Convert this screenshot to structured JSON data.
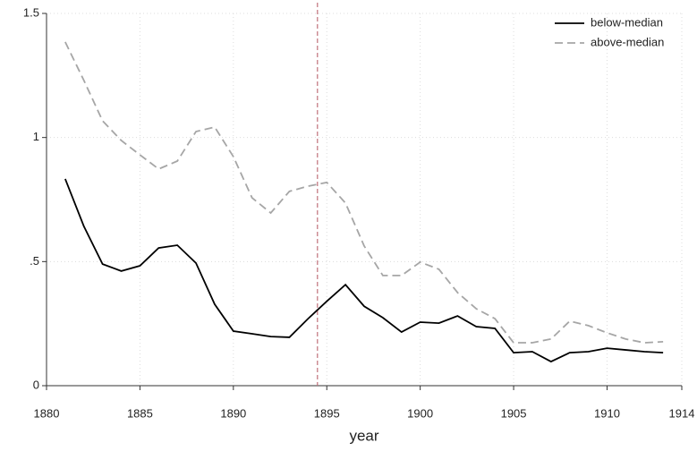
{
  "chart_data": {
    "type": "line",
    "xlabel": "year",
    "x": [
      1881,
      1882,
      1883,
      1884,
      1885,
      1886,
      1887,
      1888,
      1889,
      1890,
      1891,
      1892,
      1893,
      1894,
      1895,
      1896,
      1897,
      1898,
      1899,
      1900,
      1901,
      1902,
      1903,
      1904,
      1905,
      1906,
      1907,
      1908,
      1909,
      1910,
      1911,
      1912,
      1913
    ],
    "series": [
      {
        "name": "below-median",
        "color": "#000000",
        "dashed": false,
        "values": [
          0.833,
          0.642,
          0.49,
          0.462,
          0.483,
          0.555,
          0.566,
          0.494,
          0.328,
          0.22,
          0.209,
          0.198,
          0.195,
          0.27,
          0.34,
          0.407,
          0.32,
          0.274,
          0.216,
          0.256,
          0.252,
          0.281,
          0.238,
          0.231,
          0.133,
          0.137,
          0.097,
          0.133,
          0.137,
          0.151,
          0.144,
          0.137,
          0.133
        ]
      },
      {
        "name": "above-median",
        "color": "#a6a6a6",
        "dashed": true,
        "values": [
          1.385,
          1.23,
          1.067,
          0.988,
          0.93,
          0.873,
          0.905,
          1.024,
          1.042,
          0.923,
          0.757,
          0.696,
          0.783,
          0.804,
          0.819,
          0.736,
          0.563,
          0.444,
          0.444,
          0.498,
          0.469,
          0.375,
          0.31,
          0.27,
          0.173,
          0.173,
          0.188,
          0.26,
          0.242,
          0.213,
          0.188,
          0.173,
          0.177
        ]
      }
    ],
    "xlim": [
      1880,
      1914
    ],
    "xticks": [
      1880,
      1885,
      1890,
      1895,
      1900,
      1905,
      1910,
      1914
    ],
    "ylim": [
      0,
      1.5
    ],
    "yticks": [
      0,
      {
        "value": 0.5,
        "label": ".5"
      },
      1,
      1.5
    ],
    "grid": true,
    "legend": "top-right",
    "vline": {
      "x": 1894.5,
      "color": "#c0707a"
    }
  }
}
